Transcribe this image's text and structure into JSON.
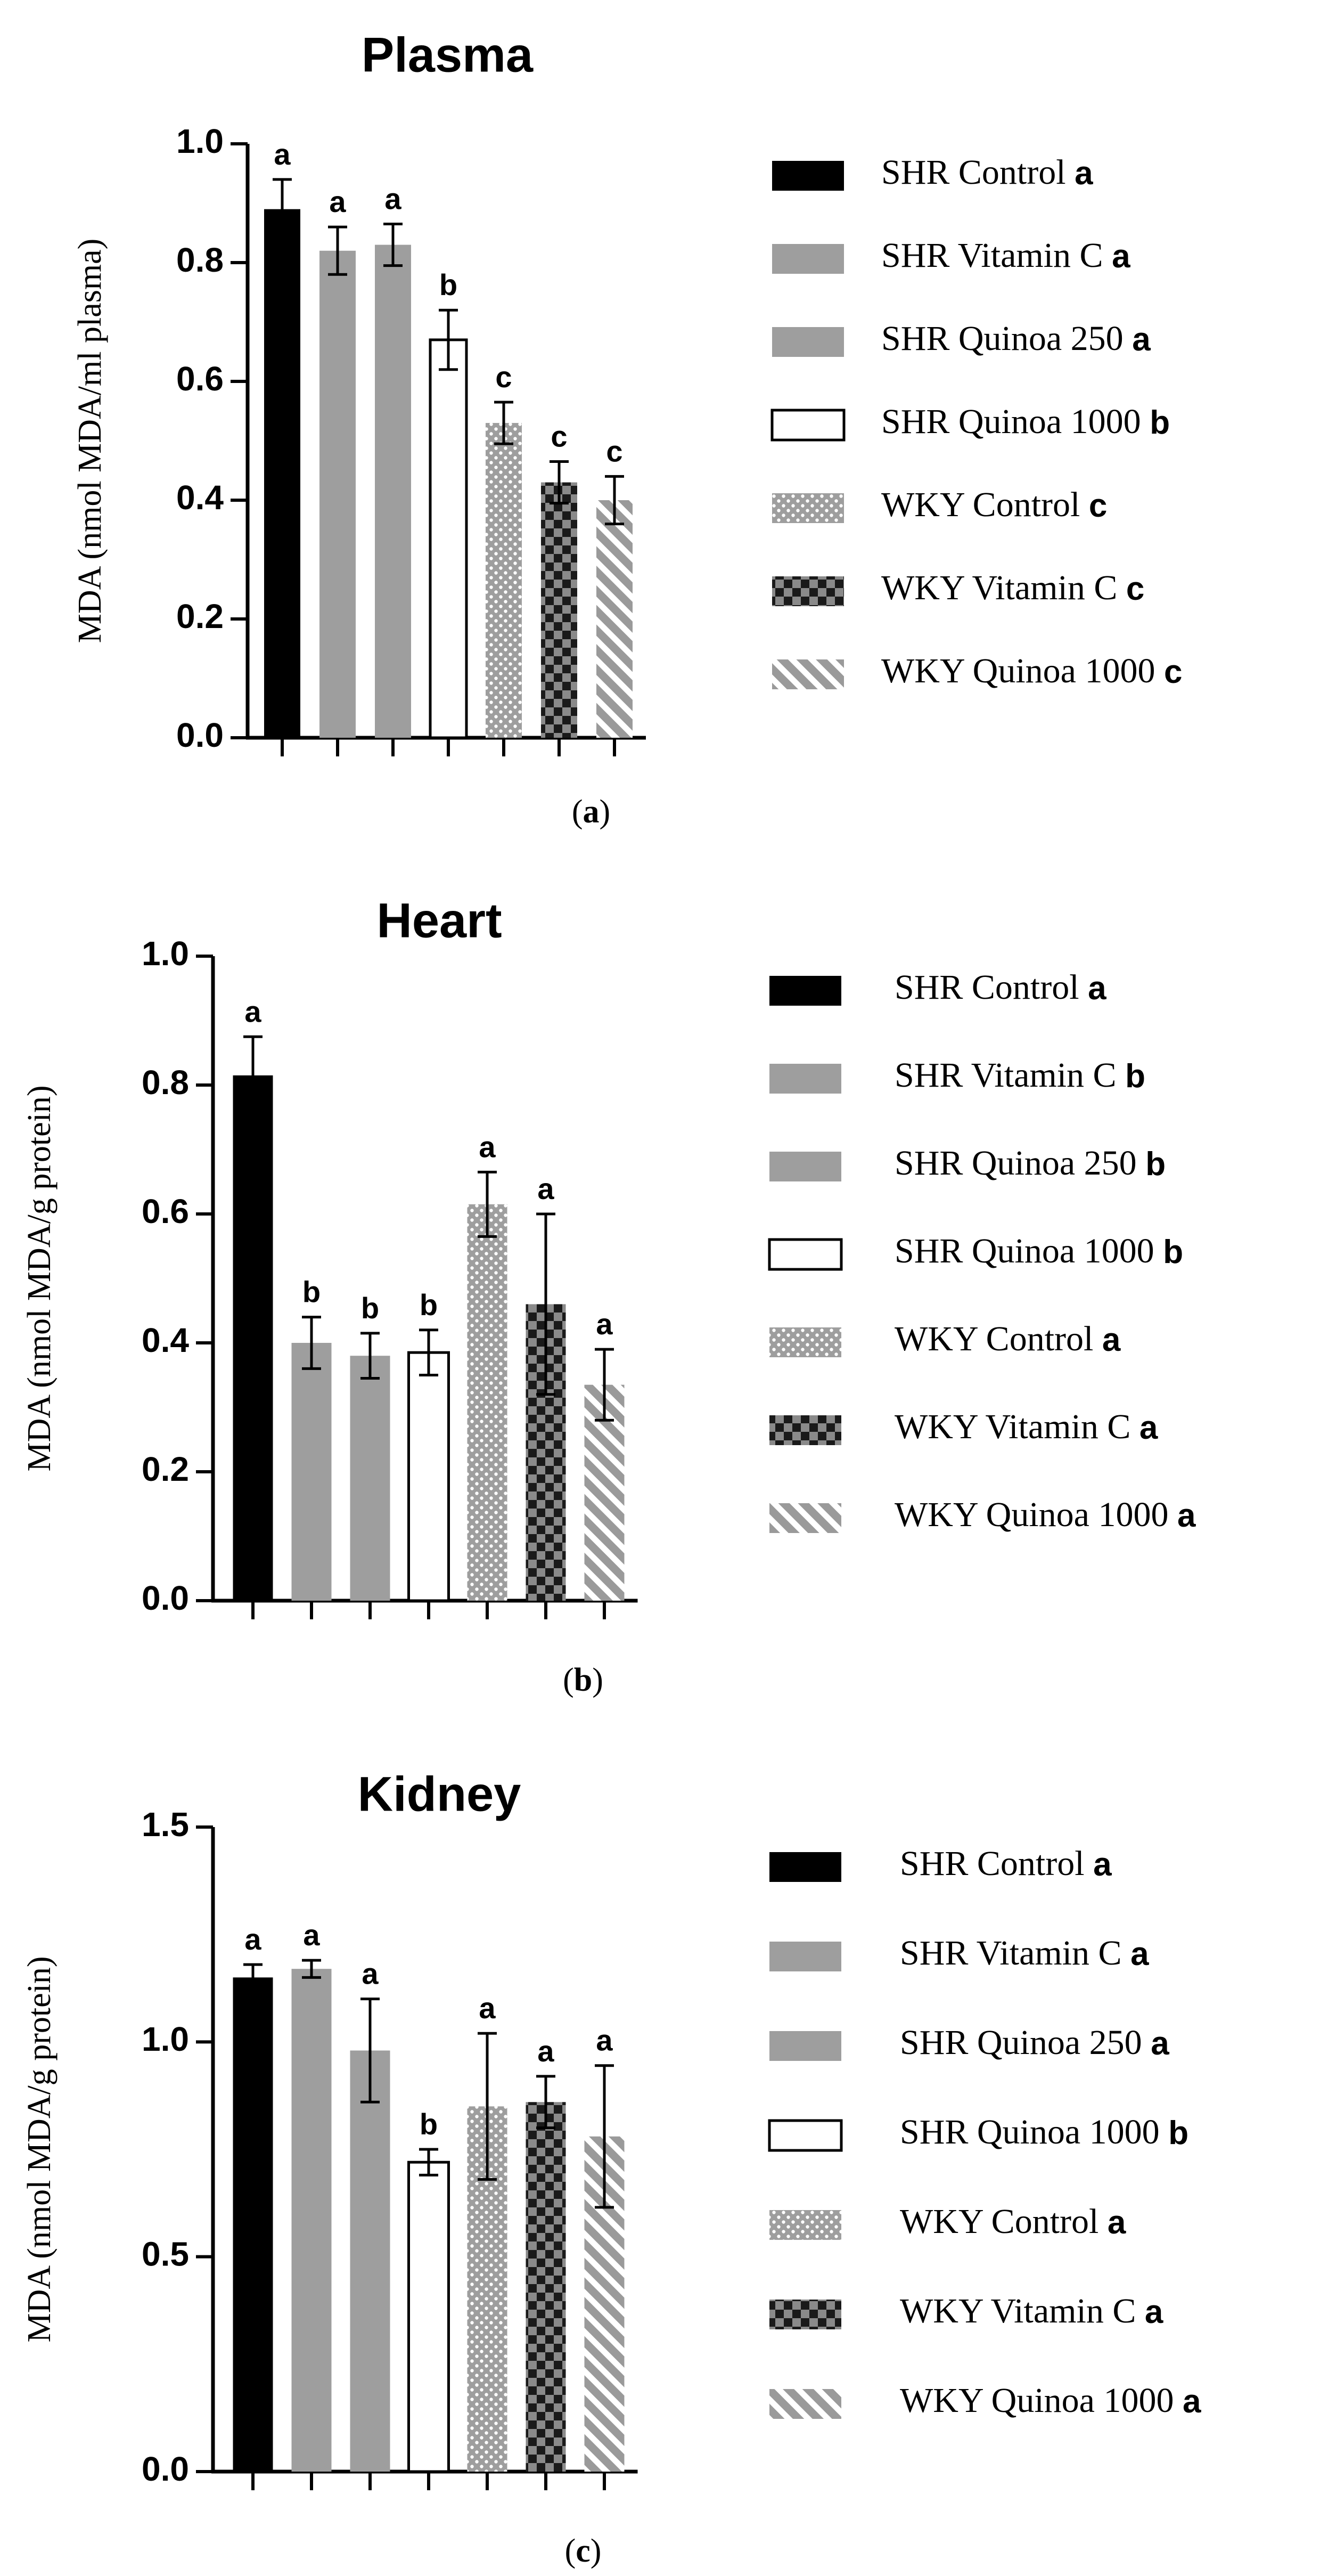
{
  "colors": {
    "black": "#000000",
    "gray": "#9e9e9e",
    "white": "#ffffff",
    "dot_fg": "#ffffff",
    "check_dark": "#1a1a1a",
    "check_light": "#8a8a8a",
    "hatch_bg": "#ffffff",
    "hatch_fg": "#9a9a9a"
  },
  "chart_data": [
    {
      "type": "bar",
      "title": "Plasma",
      "ylabel": "MDA (nmol MDA/ml plasma)",
      "xlabel": "",
      "panel_label": "a",
      "ylim": [
        0,
        1.0
      ],
      "yticks": [
        "0.0",
        "0.2",
        "0.4",
        "0.6",
        "0.8",
        "1.0"
      ],
      "ytick_values": [
        0,
        0.2,
        0.4,
        0.6,
        0.8,
        1.0
      ],
      "categories": [
        "SHR Control",
        "SHR Vitamin C",
        "SHR Quinoa 250",
        "SHR Quinoa 1000",
        "WKY Control",
        "WKY Vitamin C",
        "WKY Quinoa 1000"
      ],
      "patterns": [
        "black",
        "gray",
        "gray",
        "white",
        "dots",
        "checker",
        "hatch"
      ],
      "values": [
        0.89,
        0.82,
        0.83,
        0.67,
        0.53,
        0.43,
        0.4
      ],
      "errors": [
        0.05,
        0.04,
        0.035,
        0.05,
        0.035,
        0.035,
        0.04
      ],
      "significance": [
        "a",
        "a",
        "a",
        "b",
        "c",
        "c",
        "c"
      ],
      "legend": [
        {
          "label": "SHR Control",
          "sig": "a"
        },
        {
          "label": "SHR Vitamin C",
          "sig": "a"
        },
        {
          "label": "SHR Quinoa 250",
          "sig": "a"
        },
        {
          "label": "SHR Quinoa 1000",
          "sig": "b"
        },
        {
          "label": "WKY Control",
          "sig": "c"
        },
        {
          "label": "WKY Vitamin C",
          "sig": "c"
        },
        {
          "label": "WKY Quinoa 1000",
          "sig": "c"
        }
      ]
    },
    {
      "type": "bar",
      "title": "Heart",
      "ylabel": "MDA (nmol MDA/g protein)",
      "xlabel": "",
      "panel_label": "b",
      "ylim": [
        0,
        1.0
      ],
      "yticks": [
        "0.0",
        "0.2",
        "0.4",
        "0.6",
        "0.8",
        "1.0"
      ],
      "ytick_values": [
        0,
        0.2,
        0.4,
        0.6,
        0.8,
        1.0
      ],
      "categories": [
        "SHR Control",
        "SHR Vitamin C",
        "SHR Quinoa 250",
        "SHR Quinoa 1000",
        "WKY Control",
        "WKY Vitamin C",
        "WKY Quinoa 1000"
      ],
      "patterns": [
        "black",
        "gray",
        "gray",
        "white",
        "dots",
        "checker",
        "hatch"
      ],
      "values": [
        0.815,
        0.4,
        0.38,
        0.385,
        0.615,
        0.46,
        0.335
      ],
      "errors": [
        0.06,
        0.04,
        0.035,
        0.035,
        0.05,
        0.14,
        0.055
      ],
      "significance": [
        "a",
        "b",
        "b",
        "b",
        "a",
        "a",
        "a"
      ],
      "legend": [
        {
          "label": "SHR Control",
          "sig": "a"
        },
        {
          "label": "SHR Vitamin C",
          "sig": "b"
        },
        {
          "label": "SHR Quinoa 250",
          "sig": "b"
        },
        {
          "label": "SHR Quinoa 1000",
          "sig": "b"
        },
        {
          "label": "WKY Control",
          "sig": "a"
        },
        {
          "label": "WKY Vitamin C",
          "sig": "a"
        },
        {
          "label": "WKY Quinoa 1000",
          "sig": "a"
        }
      ]
    },
    {
      "type": "bar",
      "title": "Kidney",
      "ylabel": "MDA (nmol MDA/g protein)",
      "xlabel": "",
      "panel_label": "c",
      "ylim": [
        0,
        1.5
      ],
      "yticks": [
        "0.0",
        "0.5",
        "1.0",
        "1.5"
      ],
      "ytick_values": [
        0,
        0.5,
        1.0,
        1.5
      ],
      "categories": [
        "SHR Control",
        "SHR Vitamin C",
        "SHR Quinoa 250",
        "SHR Quinoa 1000",
        "WKY Control",
        "WKY Vitamin C",
        "WKY Quinoa 1000"
      ],
      "patterns": [
        "black",
        "gray",
        "gray",
        "white",
        "dots",
        "checker",
        "hatch"
      ],
      "values": [
        1.15,
        1.17,
        0.98,
        0.72,
        0.85,
        0.86,
        0.78
      ],
      "errors": [
        0.03,
        0.02,
        0.12,
        0.03,
        0.17,
        0.06,
        0.165
      ],
      "significance": [
        "a",
        "a",
        "a",
        "b",
        "a",
        "a",
        "a"
      ],
      "legend": [
        {
          "label": "SHR Control",
          "sig": "a"
        },
        {
          "label": "SHR Vitamin C",
          "sig": "a"
        },
        {
          "label": "SHR Quinoa 250",
          "sig": "a"
        },
        {
          "label": "SHR Quinoa 1000",
          "sig": "b"
        },
        {
          "label": "WKY Control",
          "sig": "a"
        },
        {
          "label": "WKY Vitamin C",
          "sig": "a"
        },
        {
          "label": "WKY Quinoa 1000",
          "sig": "a"
        }
      ]
    }
  ]
}
